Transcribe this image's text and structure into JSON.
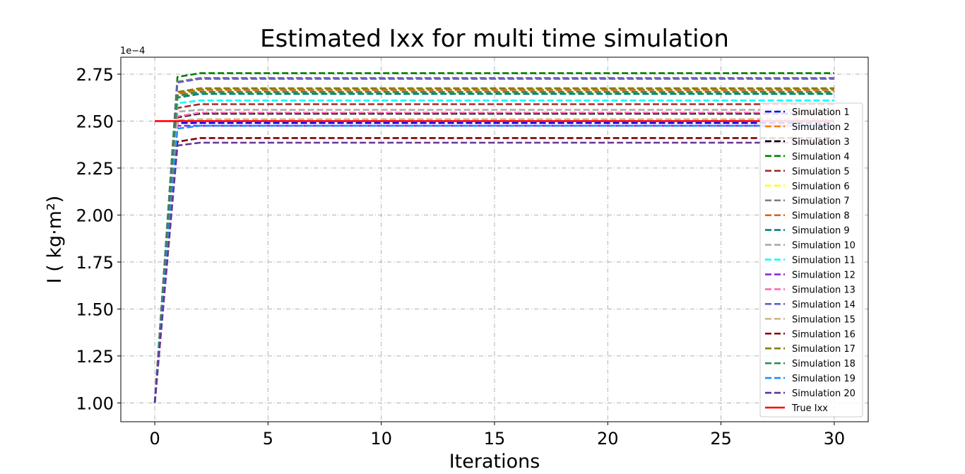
{
  "chart_data": {
    "type": "line",
    "title": "Estimated Ixx for multi time simulation",
    "xlabel": "Iterations",
    "ylabel": "I ( kg·m²)",
    "y_offset_label": "1e−4",
    "xlim": [
      -1.5,
      31.5
    ],
    "ylim": [
      0.9,
      2.84
    ],
    "x_ticks": [
      0,
      5,
      10,
      15,
      20,
      25,
      30
    ],
    "x_tick_labels": [
      "0",
      "5",
      "10",
      "15",
      "20",
      "25",
      "30"
    ],
    "y_ticks": [
      1.0,
      1.25,
      1.5,
      1.75,
      2.0,
      2.25,
      2.5,
      2.75
    ],
    "y_tick_labels": [
      "1.00",
      "1.25",
      "1.50",
      "1.75",
      "2.00",
      "2.25",
      "2.50",
      "2.75"
    ],
    "grid": true,
    "legend_position": "right",
    "x": [
      0,
      1,
      2,
      3,
      4,
      5,
      6,
      7,
      8,
      9,
      10,
      11,
      12,
      13,
      14,
      15,
      16,
      17,
      18,
      19,
      20,
      21,
      22,
      23,
      24,
      25,
      26,
      27,
      28,
      29,
      30
    ],
    "series": [
      {
        "name": "Simulation 1",
        "color": "#0000ff",
        "style": "dashed",
        "start": 1.0,
        "peak": 2.49,
        "final": 2.49
      },
      {
        "name": "Simulation 2",
        "color": "#ff7f0e",
        "style": "dashed",
        "start": 1.0,
        "peak": 2.65,
        "final": 2.67
      },
      {
        "name": "Simulation 3",
        "color": "#000000",
        "style": "dashed",
        "start": 1.0,
        "peak": 2.52,
        "final": 2.54
      },
      {
        "name": "Simulation 4",
        "color": "#008000",
        "style": "dashed",
        "start": 1.0,
        "peak": 2.735,
        "final": 2.755
      },
      {
        "name": "Simulation 5",
        "color": "#a52a2a",
        "style": "dashed",
        "start": 1.0,
        "peak": 2.57,
        "final": 2.59
      },
      {
        "name": "Simulation 6",
        "color": "#ffff00",
        "style": "dashed",
        "start": 1.0,
        "peak": 2.63,
        "final": 2.65
      },
      {
        "name": "Simulation 7",
        "color": "#808080",
        "style": "dashed",
        "start": 1.0,
        "peak": 2.71,
        "final": 2.73
      },
      {
        "name": "Simulation 8",
        "color": "#d2691e",
        "style": "dashed",
        "start": 1.0,
        "peak": 2.645,
        "final": 2.665
      },
      {
        "name": "Simulation 9",
        "color": "#008080",
        "style": "dashed",
        "start": 1.0,
        "peak": 2.625,
        "final": 2.645
      },
      {
        "name": "Simulation 10",
        "color": "#a9a9a9",
        "style": "dashed",
        "start": 1.0,
        "peak": 2.55,
        "final": 2.56
      },
      {
        "name": "Simulation 11",
        "color": "#00ffff",
        "style": "dashed",
        "start": 1.0,
        "peak": 2.595,
        "final": 2.61
      },
      {
        "name": "Simulation 12",
        "color": "#8a2be2",
        "style": "dashed",
        "start": 1.0,
        "peak": 2.475,
        "final": 2.475
      },
      {
        "name": "Simulation 13",
        "color": "#ff69b4",
        "style": "dashed",
        "start": 1.0,
        "peak": 2.525,
        "final": 2.545
      },
      {
        "name": "Simulation 14",
        "color": "#6a5acd",
        "style": "dashed",
        "start": 1.0,
        "peak": 2.705,
        "final": 2.725
      },
      {
        "name": "Simulation 15",
        "color": "#d2b48c",
        "style": "dashed",
        "start": 1.0,
        "peak": 2.505,
        "final": 2.51
      },
      {
        "name": "Simulation 16",
        "color": "#800000",
        "style": "dashed",
        "start": 1.0,
        "peak": 2.39,
        "final": 2.41
      },
      {
        "name": "Simulation 17",
        "color": "#808000",
        "style": "dashed",
        "start": 1.0,
        "peak": 2.655,
        "final": 2.675
      },
      {
        "name": "Simulation 18",
        "color": "#2e8b57",
        "style": "dashed",
        "start": 1.0,
        "peak": 2.635,
        "final": 2.655
      },
      {
        "name": "Simulation 19",
        "color": "#1e90ff",
        "style": "dashed",
        "start": 1.0,
        "peak": 2.46,
        "final": 2.475
      },
      {
        "name": "Simulation 20",
        "color": "#663399",
        "style": "dashed",
        "start": 1.0,
        "peak": 2.37,
        "final": 2.385
      },
      {
        "name": "True Ixx",
        "color": "#ff0000",
        "style": "solid",
        "constant": 2.5
      }
    ]
  }
}
